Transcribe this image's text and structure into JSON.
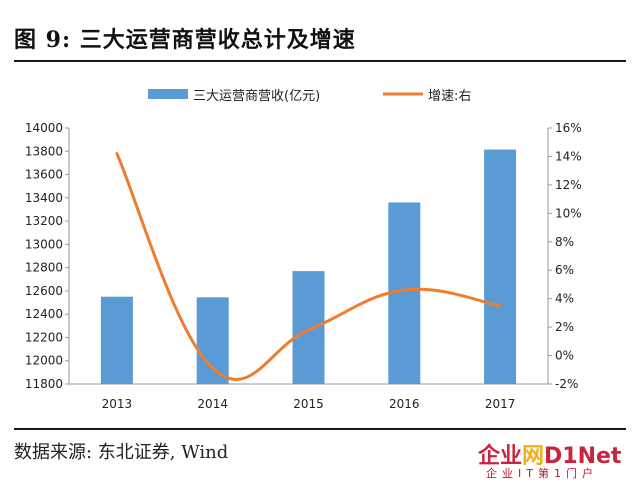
{
  "header": {
    "title": "图 9: 三大运营商营收总计及增速"
  },
  "footer": {
    "source": "数据来源: 东北证券, Wind"
  },
  "watermark": {
    "main_a": "企业",
    "main_b": "网",
    "main_c": "D1Net",
    "sub": "企业IT第1门户"
  },
  "chart_data": {
    "type": "bar",
    "categories": [
      "2013",
      "2014",
      "2015",
      "2016",
      "2017"
    ],
    "series": [
      {
        "name": "三大运营商营收(亿元)",
        "type": "bar",
        "axis": "left",
        "color": "#5b9bd5",
        "values": [
          12550,
          12545,
          12770,
          13360,
          13815
        ]
      },
      {
        "name": "增速:右",
        "type": "line",
        "axis": "right",
        "color": "#ed7d31",
        "values": [
          14.2,
          -0.9,
          1.8,
          4.6,
          3.5
        ]
      }
    ],
    "y_left": {
      "min": 11800,
      "max": 14000,
      "step": 200,
      "tick_labels": [
        "11800",
        "12000",
        "12200",
        "12400",
        "12600",
        "12800",
        "13000",
        "13200",
        "13400",
        "13600",
        "13800",
        "14000"
      ]
    },
    "y_right": {
      "min": -2,
      "max": 16,
      "step": 2,
      "tick_labels": [
        "-2%",
        "0%",
        "2%",
        "4%",
        "6%",
        "8%",
        "10%",
        "12%",
        "14%",
        "16%"
      ]
    },
    "legend_position": "top-center",
    "grid": false
  }
}
